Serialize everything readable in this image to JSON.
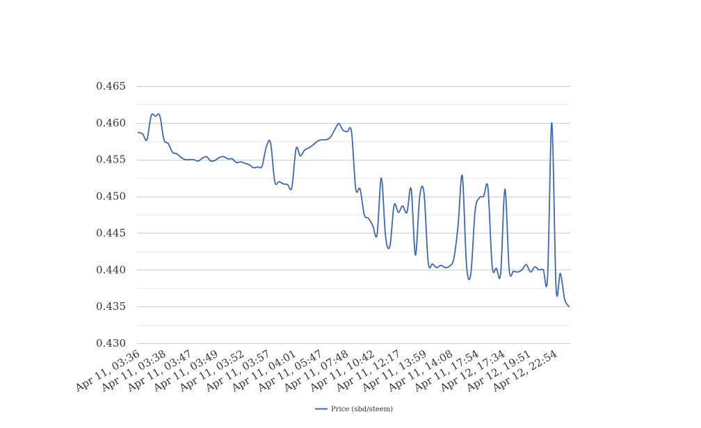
{
  "chart_data": {
    "type": "line",
    "title": "",
    "xlabel": "",
    "ylabel": "",
    "ylim": [
      0.43,
      0.465
    ],
    "y_ticks": [
      "0.430",
      "0.435",
      "0.440",
      "0.445",
      "0.450",
      "0.455",
      "0.460",
      "0.465"
    ],
    "y_tick_values": [
      0.43,
      0.435,
      0.44,
      0.445,
      0.45,
      0.455,
      0.46,
      0.465
    ],
    "grid": true,
    "legend_position": "bottom-center",
    "x_tick_labels": [
      "Apr 11, 03:36",
      "Apr 11, 03:38",
      "Apr 11, 03:47",
      "Apr 11, 03:49",
      "Apr 11, 03:52",
      "Apr 11, 03:57",
      "Apr 11, 04:01",
      "Apr 11, 05:47",
      "Apr 11, 07:48",
      "Apr 11, 10:42",
      "Apr 11, 12:17",
      "Apr 11, 13:59",
      "Apr 11, 14:08",
      "Apr 11, 17:54",
      "Apr 12, 17:34",
      "Apr 12, 19:51",
      "Apr 12, 22:54"
    ],
    "series": [
      {
        "name": "Price (sbd/steem)",
        "color": "#3a66b5",
        "values": [
          0.4587,
          0.4585,
          0.4577,
          0.461,
          0.4609,
          0.461,
          0.4577,
          0.4572,
          0.456,
          0.4558,
          0.4553,
          0.455,
          0.455,
          0.455,
          0.4548,
          0.4552,
          0.4554,
          0.4548,
          0.4549,
          0.4553,
          0.4554,
          0.4551,
          0.4551,
          0.4546,
          0.4547,
          0.4545,
          0.4543,
          0.4539,
          0.454,
          0.4541,
          0.4567,
          0.4573,
          0.452,
          0.452,
          0.4517,
          0.4516,
          0.4512,
          0.4565,
          0.4555,
          0.4563,
          0.4566,
          0.457,
          0.4575,
          0.4577,
          0.4577,
          0.458,
          0.459,
          0.4599,
          0.459,
          0.4588,
          0.4588,
          0.451,
          0.451,
          0.4475,
          0.447,
          0.446,
          0.4448,
          0.4525,
          0.4445,
          0.4432,
          0.4488,
          0.4478,
          0.4487,
          0.4478,
          0.451,
          0.442,
          0.45,
          0.4505,
          0.441,
          0.4408,
          0.4403,
          0.4406,
          0.4403,
          0.4405,
          0.4415,
          0.446,
          0.4528,
          0.4405,
          0.4395,
          0.448,
          0.4498,
          0.45,
          0.4512,
          0.4405,
          0.4402,
          0.4395,
          0.451,
          0.44,
          0.4398,
          0.4397,
          0.44,
          0.4407,
          0.4397,
          0.4404,
          0.44,
          0.44,
          0.439,
          0.46,
          0.4375,
          0.4395,
          0.436,
          0.435
        ]
      }
    ]
  }
}
